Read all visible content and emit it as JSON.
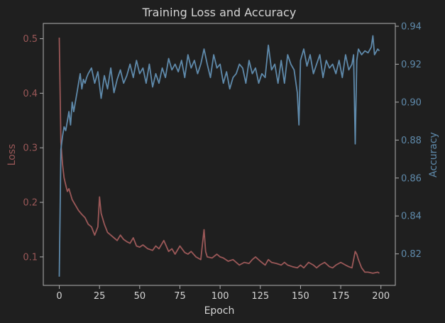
{
  "chart_data": {
    "type": "line",
    "title": "Training Loss and Accuracy",
    "xlabel": "Epoch",
    "ylabel_left": "Loss",
    "ylabel_right": "Accuracy",
    "xlim": [
      -9.95,
      208.95
    ],
    "ylim_left": [
      0.0478,
      0.528
    ],
    "ylim_right": [
      0.8034,
      0.9415
    ],
    "x_ticks": [
      0,
      25,
      50,
      75,
      100,
      125,
      150,
      175,
      200
    ],
    "y_left_ticks": [
      0.1,
      0.2,
      0.3,
      0.4,
      0.5
    ],
    "y_right_ticks": [
      0.82,
      0.84,
      0.86,
      0.88,
      0.9,
      0.92,
      0.94
    ],
    "grid": false,
    "colors": {
      "background": "#1f1f1f",
      "axes": "#b0b0b0",
      "text": "#d4d4d4",
      "loss": "#9b5858",
      "accuracy": "#5f8aab"
    },
    "series": [
      {
        "name": "Loss",
        "axis": "left",
        "x": [
          0,
          1,
          2,
          3,
          4,
          5,
          6,
          7,
          8,
          9,
          10,
          12,
          14,
          16,
          18,
          20,
          22,
          24,
          25,
          26,
          28,
          30,
          32,
          34,
          36,
          38,
          40,
          42,
          44,
          46,
          48,
          50,
          52,
          55,
          58,
          60,
          62,
          65,
          68,
          70,
          72,
          75,
          78,
          80,
          82,
          85,
          88,
          90,
          91,
          92,
          95,
          98,
          100,
          102,
          105,
          108,
          110,
          112,
          115,
          118,
          120,
          122,
          125,
          128,
          130,
          132,
          135,
          138,
          140,
          142,
          145,
          148,
          150,
          152,
          155,
          158,
          160,
          162,
          165,
          168,
          170,
          172,
          175,
          178,
          180,
          182,
          184,
          185,
          186,
          188,
          190,
          192,
          195,
          198,
          199
        ],
        "values": [
          0.502,
          0.31,
          0.27,
          0.245,
          0.232,
          0.22,
          0.225,
          0.215,
          0.205,
          0.2,
          0.195,
          0.185,
          0.178,
          0.172,
          0.16,
          0.155,
          0.14,
          0.155,
          0.21,
          0.18,
          0.16,
          0.145,
          0.14,
          0.135,
          0.13,
          0.14,
          0.132,
          0.128,
          0.125,
          0.135,
          0.12,
          0.118,
          0.122,
          0.115,
          0.112,
          0.12,
          0.115,
          0.13,
          0.11,
          0.115,
          0.105,
          0.12,
          0.108,
          0.105,
          0.11,
          0.1,
          0.095,
          0.15,
          0.11,
          0.1,
          0.098,
          0.105,
          0.1,
          0.098,
          0.092,
          0.095,
          0.09,
          0.085,
          0.09,
          0.088,
          0.095,
          0.1,
          0.092,
          0.085,
          0.095,
          0.09,
          0.088,
          0.085,
          0.09,
          0.085,
          0.082,
          0.08,
          0.085,
          0.08,
          0.09,
          0.085,
          0.08,
          0.085,
          0.09,
          0.082,
          0.08,
          0.085,
          0.09,
          0.085,
          0.082,
          0.08,
          0.11,
          0.105,
          0.095,
          0.08,
          0.072,
          0.072,
          0.07,
          0.072,
          0.07
        ]
      },
      {
        "name": "Accuracy",
        "axis": "right",
        "x": [
          0,
          1,
          2,
          3,
          4,
          5,
          6,
          7,
          8,
          9,
          10,
          11,
          12,
          13,
          14,
          15,
          16,
          17,
          18,
          20,
          22,
          24,
          26,
          28,
          30,
          32,
          34,
          36,
          38,
          40,
          42,
          44,
          46,
          48,
          50,
          52,
          54,
          56,
          58,
          60,
          62,
          64,
          66,
          68,
          70,
          72,
          74,
          76,
          78,
          80,
          82,
          84,
          86,
          88,
          90,
          92,
          94,
          96,
          98,
          100,
          102,
          104,
          106,
          108,
          110,
          112,
          114,
          116,
          118,
          120,
          122,
          124,
          126,
          128,
          130,
          132,
          134,
          136,
          138,
          140,
          142,
          144,
          146,
          148,
          149,
          150,
          152,
          154,
          156,
          158,
          160,
          162,
          164,
          166,
          168,
          170,
          172,
          174,
          176,
          178,
          180,
          182,
          183,
          184,
          185,
          186,
          188,
          190,
          192,
          194,
          195,
          196,
          198,
          199
        ],
        "values": [
          0.808,
          0.875,
          0.882,
          0.887,
          0.885,
          0.89,
          0.895,
          0.888,
          0.9,
          0.895,
          0.9,
          0.905,
          0.91,
          0.915,
          0.907,
          0.912,
          0.91,
          0.913,
          0.915,
          0.918,
          0.91,
          0.916,
          0.902,
          0.914,
          0.907,
          0.918,
          0.905,
          0.912,
          0.917,
          0.91,
          0.914,
          0.92,
          0.913,
          0.922,
          0.915,
          0.918,
          0.91,
          0.92,
          0.908,
          0.915,
          0.91,
          0.918,
          0.913,
          0.923,
          0.917,
          0.92,
          0.916,
          0.922,
          0.913,
          0.925,
          0.918,
          0.922,
          0.915,
          0.92,
          0.928,
          0.92,
          0.913,
          0.925,
          0.918,
          0.92,
          0.91,
          0.916,
          0.907,
          0.913,
          0.915,
          0.92,
          0.918,
          0.91,
          0.922,
          0.915,
          0.918,
          0.91,
          0.915,
          0.913,
          0.93,
          0.917,
          0.92,
          0.91,
          0.922,
          0.91,
          0.925,
          0.92,
          0.917,
          0.905,
          0.888,
          0.922,
          0.928,
          0.919,
          0.925,
          0.915,
          0.92,
          0.925,
          0.913,
          0.922,
          0.918,
          0.92,
          0.915,
          0.922,
          0.913,
          0.925,
          0.917,
          0.92,
          0.925,
          0.878,
          0.922,
          0.928,
          0.925,
          0.927,
          0.926,
          0.929,
          0.935,
          0.925,
          0.928,
          0.927
        ]
      }
    ]
  }
}
